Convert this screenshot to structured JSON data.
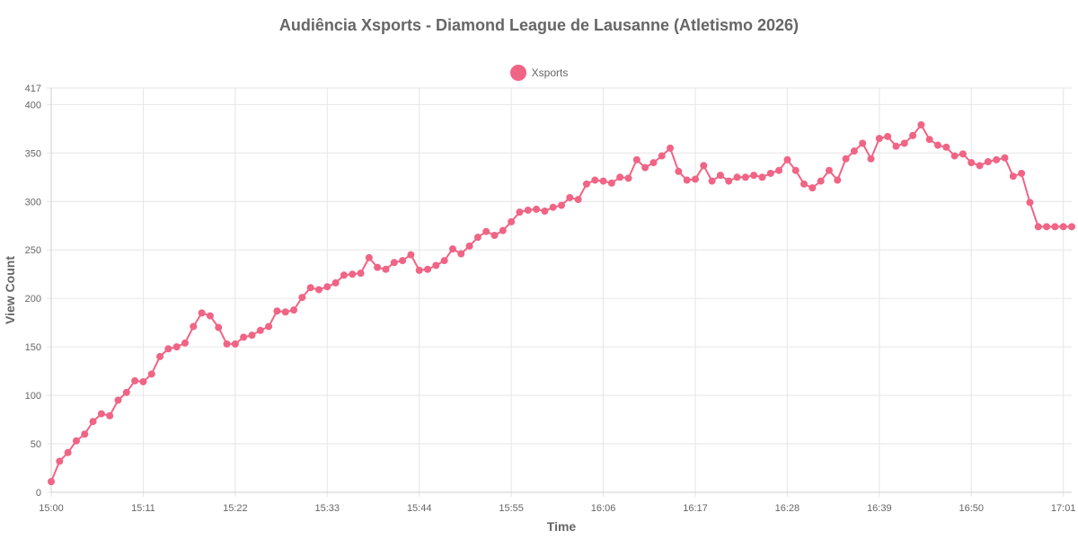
{
  "chart_data": {
    "type": "line",
    "title": "Audiência Xsports - Diamond League de Lausanne (Atletismo 2026)",
    "xlabel": "Time",
    "ylabel": "View Count",
    "ylim": [
      0,
      417
    ],
    "y_ticks": [
      0,
      50,
      100,
      150,
      200,
      250,
      300,
      350,
      400,
      417
    ],
    "x_ticks": [
      "15:00",
      "15:11",
      "15:22",
      "15:33",
      "15:44",
      "15:55",
      "16:06",
      "16:17",
      "16:28",
      "16:39",
      "16:50",
      "17:01"
    ],
    "x": [
      "15:00",
      "15:01",
      "15:02",
      "15:03",
      "15:04",
      "15:05",
      "15:06",
      "15:07",
      "15:08",
      "15:09",
      "15:10",
      "15:11",
      "15:12",
      "15:13",
      "15:14",
      "15:15",
      "15:16",
      "15:17",
      "15:18",
      "15:19",
      "15:20",
      "15:21",
      "15:22",
      "15:23",
      "15:24",
      "15:25",
      "15:26",
      "15:27",
      "15:28",
      "15:29",
      "15:30",
      "15:31",
      "15:32",
      "15:33",
      "15:34",
      "15:35",
      "15:36",
      "15:37",
      "15:38",
      "15:39",
      "15:40",
      "15:41",
      "15:42",
      "15:43",
      "15:44",
      "15:45",
      "15:46",
      "15:47",
      "15:48",
      "15:49",
      "15:50",
      "15:51",
      "15:52",
      "15:53",
      "15:54",
      "15:55",
      "15:56",
      "15:57",
      "15:58",
      "15:59",
      "16:00",
      "16:01",
      "16:02",
      "16:03",
      "16:04",
      "16:05",
      "16:06",
      "16:07",
      "16:08",
      "16:09",
      "16:10",
      "16:11",
      "16:12",
      "16:13",
      "16:14",
      "16:15",
      "16:16",
      "16:17",
      "16:18",
      "16:19",
      "16:20",
      "16:21",
      "16:22",
      "16:23",
      "16:24",
      "16:25",
      "16:26",
      "16:27",
      "16:28",
      "16:29",
      "16:30",
      "16:31",
      "16:32",
      "16:33",
      "16:34",
      "16:35",
      "16:36",
      "16:37",
      "16:38",
      "16:39",
      "16:40",
      "16:41",
      "16:42",
      "16:43",
      "16:44",
      "16:45",
      "16:46",
      "16:47",
      "16:48",
      "16:49",
      "16:50",
      "16:51",
      "16:52",
      "16:53",
      "16:54",
      "16:55",
      "16:56",
      "16:57",
      "16:58",
      "16:59",
      "17:00",
      "17:01",
      "17:02"
    ],
    "series": [
      {
        "name": "Xsports",
        "color": "#f06485",
        "values": [
          11,
          32,
          41,
          53,
          60,
          73,
          81,
          79,
          95,
          103,
          115,
          114,
          122,
          140,
          148,
          150,
          154,
          171,
          185,
          182,
          170,
          153,
          153,
          160,
          162,
          167,
          171,
          187,
          186,
          188,
          201,
          211,
          209,
          212,
          216,
          224,
          225,
          226,
          242,
          232,
          230,
          237,
          239,
          245,
          229,
          230,
          234,
          239,
          251,
          246,
          254,
          263,
          269,
          265,
          270,
          279,
          289,
          291,
          292,
          290,
          294,
          296,
          304,
          302,
          318,
          322,
          321,
          319,
          325,
          324,
          343,
          335,
          340,
          347,
          355,
          331,
          322,
          323,
          337,
          321,
          327,
          321,
          325,
          325,
          327,
          325,
          329,
          332,
          343,
          332,
          318,
          314,
          321,
          332,
          322,
          344,
          352,
          360,
          344,
          365,
          367,
          357,
          360,
          368,
          379,
          364,
          358,
          356,
          347,
          349,
          340,
          337,
          341,
          343,
          345,
          326,
          329,
          299,
          274,
          274,
          274,
          274,
          274
        ]
      }
    ]
  }
}
